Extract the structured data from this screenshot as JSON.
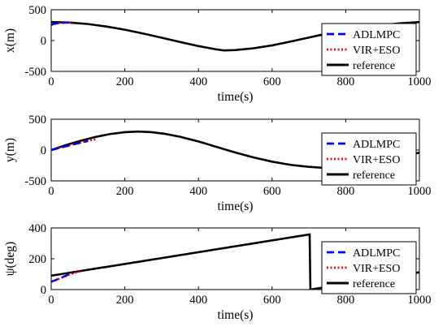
{
  "chart_data": [
    {
      "type": "line",
      "xlabel": "time(s)",
      "ylabel": "x(m)",
      "xlim": [
        0,
        1000
      ],
      "ylim": [
        -500,
        500
      ],
      "xticks": [
        0,
        200,
        400,
        600,
        800,
        1000
      ],
      "yticks": [
        -500,
        0,
        500
      ],
      "xtick_labels": [
        "0",
        "200",
        "400",
        "600",
        "800",
        "1000"
      ],
      "ytick_labels": [
        "-500",
        "0",
        "500"
      ],
      "grid": false,
      "legend_position": "right",
      "series": [
        {
          "name": "ADLMPC",
          "color": "#0000ff",
          "style": "dashed",
          "x": [
            0,
            5,
            10,
            20,
            30,
            40,
            50
          ],
          "y": [
            255,
            265,
            272,
            282,
            287,
            290,
            292
          ]
        },
        {
          "name": "VIR+ESO",
          "color": "#ff0000",
          "style": "dotted",
          "x": [
            0,
            5,
            10,
            20,
            30,
            40,
            50,
            60
          ],
          "y": [
            250,
            262,
            270,
            280,
            286,
            289,
            291,
            292
          ]
        },
        {
          "name": "reference",
          "color": "#000000",
          "style": "solid",
          "x": [
            0,
            50,
            100,
            150,
            200,
            250,
            300,
            350,
            400,
            450,
            470,
            500,
            550,
            600,
            650,
            700,
            750,
            800,
            850,
            900,
            950,
            1000
          ],
          "y": [
            300,
            292,
            268,
            228,
            176,
            114,
            46,
            -23,
            -90,
            -145,
            -160,
            -154,
            -125,
            -78,
            -16,
            49,
            114,
            168,
            214,
            252,
            280,
            300
          ]
        }
      ]
    },
    {
      "type": "line",
      "xlabel": "time(s)",
      "ylabel": "y(m)",
      "xlim": [
        0,
        1000
      ],
      "ylim": [
        -500,
        500
      ],
      "xticks": [
        0,
        200,
        400,
        600,
        800,
        1000
      ],
      "yticks": [
        -500,
        0,
        500
      ],
      "xtick_labels": [
        "0",
        "200",
        "400",
        "600",
        "800",
        "1000"
      ],
      "ytick_labels": [
        "-500",
        "0",
        "500"
      ],
      "grid": false,
      "legend_position": "right",
      "series": [
        {
          "name": "ADLMPC",
          "color": "#0000ff",
          "style": "dashed",
          "x": [
            0,
            10,
            20,
            40,
            60,
            80,
            100
          ],
          "y": [
            0,
            15,
            30,
            60,
            90,
            118,
            145
          ]
        },
        {
          "name": "VIR+ESO",
          "color": "#ff0000",
          "style": "dotted",
          "x": [
            0,
            10,
            20,
            40,
            60,
            80,
            100,
            120
          ],
          "y": [
            0,
            16,
            32,
            63,
            93,
            121,
            148,
            172
          ]
        },
        {
          "name": "reference",
          "color": "#000000",
          "style": "solid",
          "x": [
            0,
            40,
            80,
            120,
            160,
            200,
            235,
            270,
            310,
            350,
            400,
            450,
            500,
            550,
            600,
            650,
            700,
            750,
            800,
            850,
            900,
            950,
            1000
          ],
          "y": [
            0,
            80,
            152,
            212,
            260,
            290,
            300,
            292,
            262,
            216,
            140,
            50,
            -40,
            -120,
            -188,
            -240,
            -272,
            -294,
            -300,
            -278,
            -220,
            -130,
            -40
          ]
        }
      ]
    },
    {
      "type": "line",
      "xlabel": "time(s)",
      "ylabel": "ψ(deg)",
      "xlim": [
        0,
        1000
      ],
      "ylim": [
        0,
        400
      ],
      "xticks": [
        0,
        200,
        400,
        600,
        800,
        1000
      ],
      "yticks": [
        0,
        200,
        400
      ],
      "xtick_labels": [
        "0",
        "200",
        "400",
        "600",
        "800",
        "1000"
      ],
      "ytick_labels": [
        "0",
        "200",
        "400"
      ],
      "grid": false,
      "legend_position": "right",
      "series": [
        {
          "name": "ADLMPC",
          "color": "#0000ff",
          "style": "dashed",
          "x": [
            0,
            10,
            20,
            30,
            40,
            50,
            60
          ],
          "y": [
            52,
            60,
            70,
            80,
            90,
            100,
            108
          ]
        },
        {
          "name": "VIR+ESO",
          "color": "#ff0000",
          "style": "dotted",
          "x": [
            0,
            10,
            20,
            30,
            40,
            50,
            60,
            80
          ],
          "y": [
            50,
            58,
            68,
            78,
            88,
            98,
            106,
            118
          ]
        },
        {
          "name": "reference",
          "color": "#000000",
          "style": "solid",
          "x": [
            0,
            702,
            704,
            1000
          ],
          "y": [
            90,
            358,
            0,
            112
          ]
        }
      ]
    }
  ]
}
